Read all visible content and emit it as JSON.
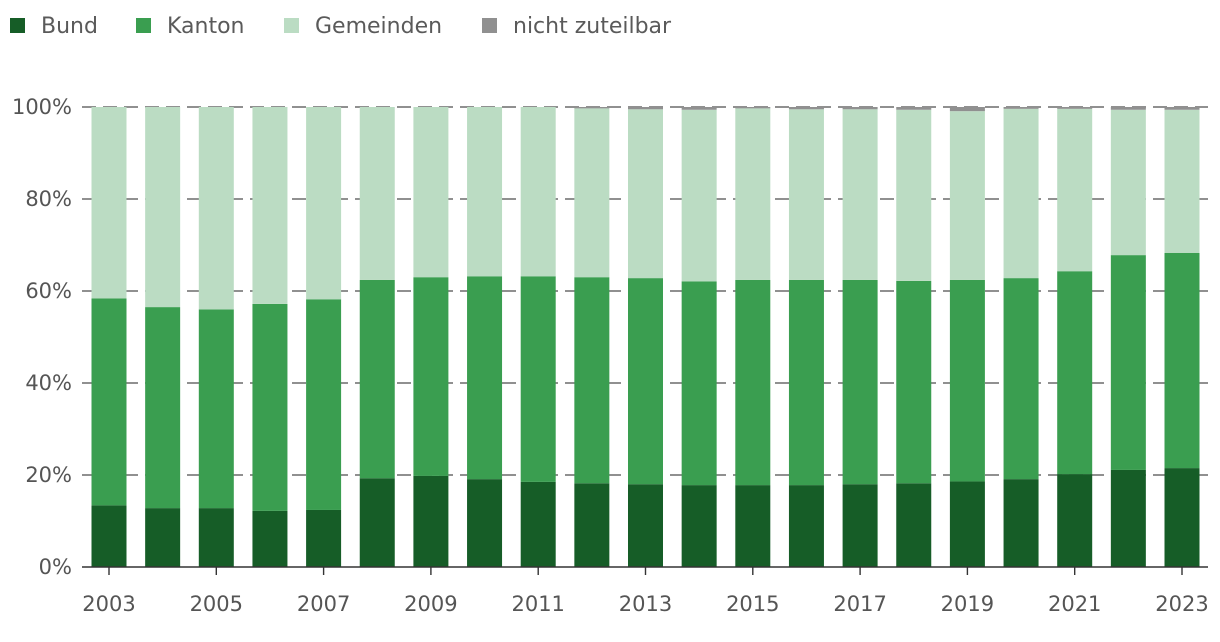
{
  "chart_data": {
    "type": "bar",
    "stacked": true,
    "x": [
      "2003",
      "2004",
      "2005",
      "2006",
      "2007",
      "2008",
      "2009",
      "2010",
      "2011",
      "2012",
      "2013",
      "2014",
      "2015",
      "2016",
      "2017",
      "2018",
      "2019",
      "2020",
      "2021",
      "2022",
      "2023"
    ],
    "x_tick_labels": [
      "2003",
      "2005",
      "2007",
      "2009",
      "2011",
      "2013",
      "2015",
      "2017",
      "2019",
      "2021",
      "2023"
    ],
    "y_tick_labels": [
      "0%",
      "20%",
      "40%",
      "60%",
      "80%",
      "100%"
    ],
    "ylim": [
      0,
      100
    ],
    "grid": true,
    "legend_position": "top-left",
    "series": [
      {
        "name": "Bund",
        "color": "#165d27",
        "values": [
          13.4,
          12.8,
          12.8,
          12.2,
          12.4,
          19.3,
          19.8,
          19.1,
          18.5,
          18.2,
          18.0,
          17.8,
          17.8,
          17.8,
          18.0,
          18.2,
          18.6,
          19.1,
          20.2,
          21.1,
          21.5
        ]
      },
      {
        "name": "Kanton",
        "color": "#3a9e50",
        "values": [
          45.0,
          43.7,
          43.2,
          45.0,
          45.8,
          43.1,
          43.2,
          44.1,
          44.7,
          44.8,
          44.8,
          44.3,
          44.6,
          44.6,
          44.4,
          44.0,
          43.8,
          43.7,
          44.1,
          46.7,
          46.8
        ]
      },
      {
        "name": "Gemeinden",
        "color": "#bbdcc3",
        "values": [
          41.6,
          43.5,
          44.0,
          42.8,
          41.8,
          37.6,
          37.0,
          36.8,
          36.8,
          36.7,
          36.7,
          37.3,
          37.3,
          37.1,
          37.1,
          37.2,
          36.7,
          36.8,
          35.3,
          31.6,
          31.1
        ]
      },
      {
        "name": "nicht zuteilbar",
        "color": "#909090",
        "values": [
          0.0,
          0.0,
          0.0,
          0.0,
          0.0,
          0.0,
          0.0,
          0.0,
          0.0,
          0.3,
          0.5,
          0.6,
          0.3,
          0.5,
          0.5,
          0.6,
          0.9,
          0.4,
          0.4,
          0.6,
          0.6
        ]
      }
    ]
  }
}
